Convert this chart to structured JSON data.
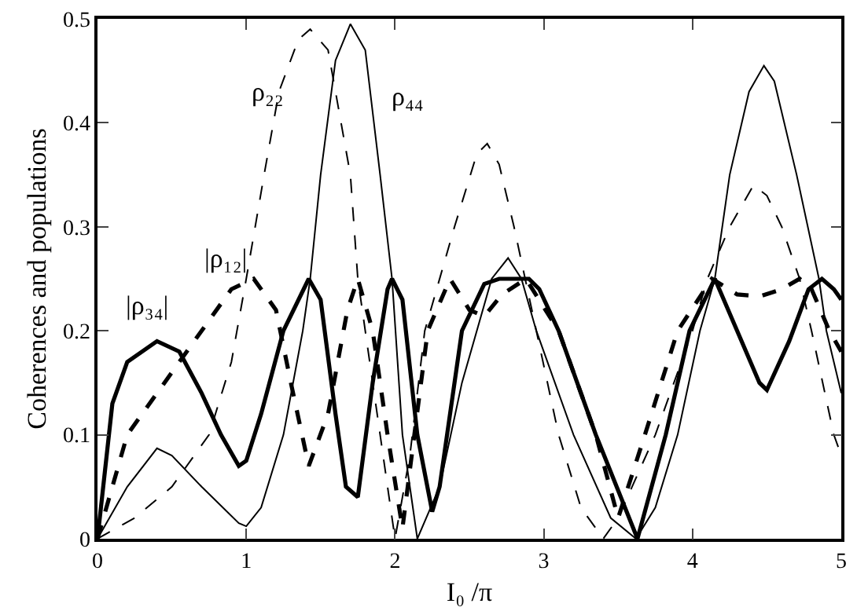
{
  "chart_data": {
    "type": "line",
    "xlabel": "I₀ /π",
    "ylabel": "Coherences and populations",
    "xlim": [
      0,
      5
    ],
    "xticks": [
      0,
      1,
      2,
      3,
      4,
      5
    ],
    "ylim": [
      0,
      0.5
    ],
    "yticks": [
      0,
      0.1,
      0.2,
      0.3,
      0.4,
      0.5
    ],
    "grid": false,
    "marker": "none",
    "annotations": [
      "ρ₂₂",
      "ρ₄₄",
      "|ρ₁₂|",
      "|ρ₃₄|"
    ],
    "series": [
      {
        "color": "#000000",
        "line_style": "dashed",
        "x": [
          0,
          0.25,
          0.5,
          0.75,
          0.9,
          1.0,
          1.12,
          1.22,
          1.35,
          1.43,
          1.55,
          1.7,
          1.75,
          1.9,
          2.0,
          2.1,
          2.2,
          2.4,
          2.55,
          2.62,
          2.7,
          2.8,
          2.95,
          3.1,
          3.25,
          3.4,
          3.5,
          3.75,
          4.0,
          4.1,
          4.25,
          4.41,
          4.5,
          4.6,
          4.72,
          4.8,
          4.95,
          5.0
        ],
        "values": [
          0,
          0.02,
          0.05,
          0.1,
          0.17,
          0.25,
          0.35,
          0.43,
          0.48,
          0.49,
          0.47,
          0.35,
          0.25,
          0.1,
          0,
          0.08,
          0.2,
          0.3,
          0.37,
          0.38,
          0.36,
          0.3,
          0.2,
          0.1,
          0.03,
          0,
          0.02,
          0.1,
          0.2,
          0.25,
          0.3,
          0.34,
          0.33,
          0.3,
          0.25,
          0.2,
          0.1,
          0.08
        ]
      },
      {
        "color": "#000000",
        "line_style": "solid",
        "x": [
          0,
          0.2,
          0.4,
          0.5,
          0.7,
          0.95,
          1.0,
          1.1,
          1.25,
          1.38,
          1.43,
          1.5,
          1.6,
          1.7,
          1.8,
          1.9,
          1.98,
          2.05,
          2.15,
          2.3,
          2.45,
          2.65,
          2.76,
          2.85,
          2.95,
          3.2,
          3.45,
          3.62,
          3.75,
          3.9,
          4.05,
          4.15,
          4.25,
          4.38,
          4.48,
          4.55,
          4.7,
          4.85,
          4.9,
          5.0
        ],
        "values": [
          0,
          0.05,
          0.087,
          0.08,
          0.05,
          0.015,
          0.012,
          0.03,
          0.1,
          0.2,
          0.25,
          0.35,
          0.46,
          0.495,
          0.47,
          0.35,
          0.25,
          0.1,
          0,
          0.05,
          0.15,
          0.25,
          0.27,
          0.25,
          0.2,
          0.1,
          0.02,
          0,
          0.03,
          0.1,
          0.2,
          0.25,
          0.35,
          0.43,
          0.455,
          0.44,
          0.35,
          0.25,
          0.2,
          0.14
        ]
      },
      {
        "color": "#000000",
        "line_style": "dashed",
        "x": [
          0,
          0.2,
          0.45,
          0.7,
          0.9,
          1.05,
          1.2,
          1.3,
          1.42,
          1.55,
          1.68,
          1.75,
          1.85,
          1.95,
          2.05,
          2.13,
          2.22,
          2.37,
          2.5,
          2.6,
          2.72,
          2.88,
          3.1,
          3.35,
          3.5,
          3.68,
          3.9,
          4.13,
          4.3,
          4.45,
          4.6,
          4.72,
          4.8,
          4.92,
          5.0
        ],
        "values": [
          0,
          0.1,
          0.15,
          0.2,
          0.24,
          0.25,
          0.22,
          0.15,
          0.07,
          0.12,
          0.22,
          0.25,
          0.2,
          0.1,
          0.01,
          0.1,
          0.2,
          0.25,
          0.22,
          0.214,
          0.235,
          0.25,
          0.2,
          0.1,
          0.02,
          0.1,
          0.2,
          0.25,
          0.235,
          0.233,
          0.24,
          0.25,
          0.24,
          0.2,
          0.18
        ]
      },
      {
        "color": "#000000",
        "line_style": "solid",
        "x": [
          0,
          0.1,
          0.2,
          0.4,
          0.55,
          0.7,
          0.83,
          0.95,
          1.0,
          1.1,
          1.25,
          1.42,
          1.5,
          1.6,
          1.67,
          1.75,
          1.85,
          1.95,
          1.98,
          2.05,
          2.15,
          2.25,
          2.3,
          2.45,
          2.6,
          2.7,
          2.9,
          2.97,
          3.1,
          3.35,
          3.63,
          3.82,
          3.98,
          4.15,
          4.3,
          4.45,
          4.5,
          4.65,
          4.78,
          4.87,
          4.95,
          5.0
        ],
        "values": [
          0,
          0.13,
          0.17,
          0.19,
          0.18,
          0.14,
          0.1,
          0.07,
          0.075,
          0.12,
          0.2,
          0.25,
          0.23,
          0.12,
          0.05,
          0.04,
          0.15,
          0.24,
          0.25,
          0.23,
          0.1,
          0.026,
          0.05,
          0.2,
          0.245,
          0.25,
          0.25,
          0.24,
          0.2,
          0.1,
          0,
          0.1,
          0.2,
          0.25,
          0.2,
          0.15,
          0.143,
          0.19,
          0.24,
          0.25,
          0.24,
          0.23
        ]
      }
    ]
  }
}
